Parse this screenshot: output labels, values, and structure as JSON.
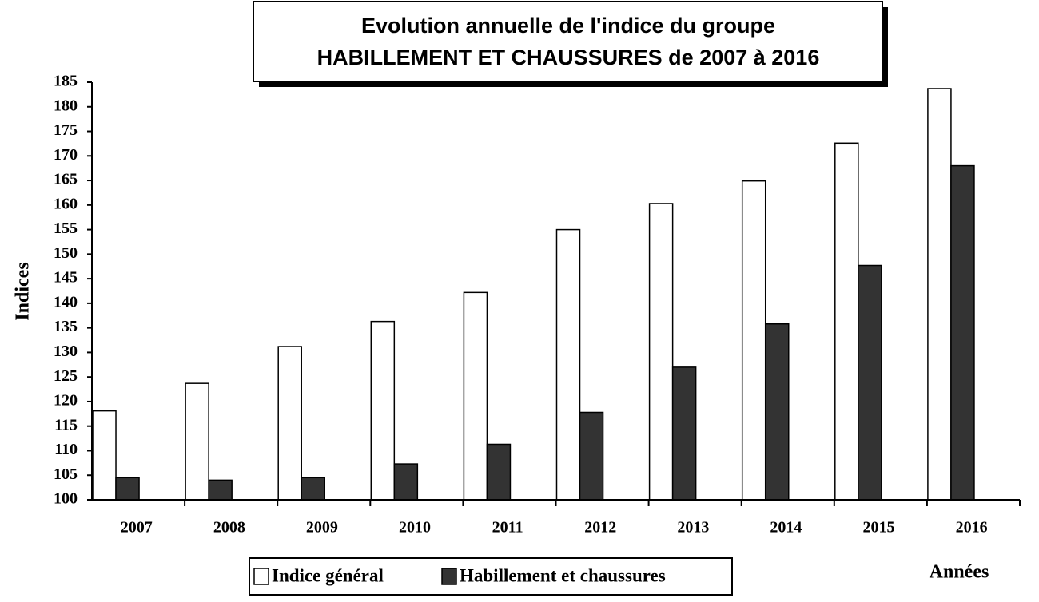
{
  "chart_data": {
    "type": "bar",
    "title": [
      "Evolution annuelle de l'indice du  groupe",
      "HABILLEMENT ET CHAUSSURES de 2007 à 2016"
    ],
    "y_label": "Indices",
    "x_label": "Années",
    "categories": [
      "2007",
      "2008",
      "2009",
      "2010",
      "2011",
      "2012",
      "2013",
      "2014",
      "2015",
      "2016"
    ],
    "series": [
      {
        "name": "Indice général",
        "color": "#ffffff",
        "values": [
          118.1,
          123.7,
          131.2,
          136.3,
          142.2,
          155.0,
          160.3,
          164.9,
          172.6,
          183.7
        ]
      },
      {
        "name": "Habillement et chaussures",
        "color": "#333333",
        "values": [
          104.5,
          104.0,
          104.5,
          107.3,
          111.3,
          117.8,
          127.0,
          135.8,
          147.7,
          168.0
        ]
      }
    ],
    "ylim": [
      100,
      185
    ],
    "yticks": [
      100,
      105,
      110,
      115,
      120,
      125,
      130,
      135,
      140,
      145,
      150,
      155,
      160,
      165,
      170,
      175,
      180,
      185
    ],
    "grid": false,
    "legend": "bottom"
  }
}
